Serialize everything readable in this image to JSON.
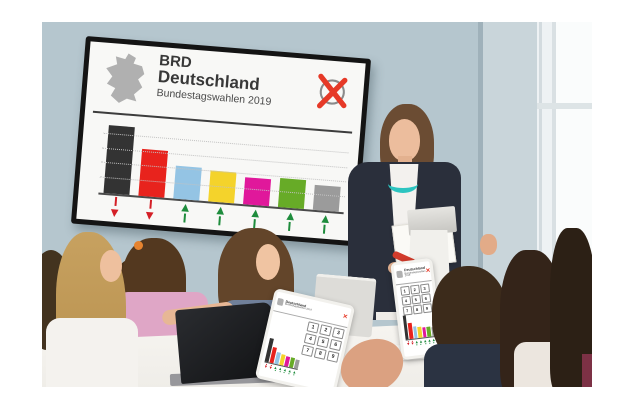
{
  "screen": {
    "title_line1": "BRD",
    "title_line2": "Deutschland",
    "subtitle": "Bundestagswahlen 2019"
  },
  "icons": {
    "ballot_x_glyph": "✕",
    "arrow_up_glyph": "▲",
    "arrow_down_glyph": "▼",
    "germany_map": "germany-map-icon",
    "ballot_x": "ballot-x-icon"
  },
  "tablet_app": {
    "keypad_digits": [
      "1",
      "2",
      "3",
      "4",
      "5",
      "6",
      "7",
      "8",
      "9"
    ]
  },
  "chart_data": {
    "type": "bar",
    "title": "BRD Deutschland Bundestagswahlen 2019",
    "categories": [
      "schwarz",
      "rot",
      "hellblau",
      "gelb",
      "magenta",
      "gruen",
      "grau"
    ],
    "values": [
      35,
      24,
      17,
      16,
      14,
      15,
      13
    ],
    "colors": [
      "#333333",
      "#e8231d",
      "#94c4e4",
      "#f4d32b",
      "#e0189b",
      "#67ab27",
      "#9b9b9b"
    ],
    "trends": [
      "down",
      "down",
      "up",
      "up",
      "up",
      "up",
      "up"
    ],
    "trend_colors": {
      "down": "#d41f26",
      "up": "#1e8c3c"
    },
    "xlabel": "",
    "ylabel": "",
    "ylim": [
      0,
      38
    ],
    "grid": true,
    "legend": "none"
  }
}
